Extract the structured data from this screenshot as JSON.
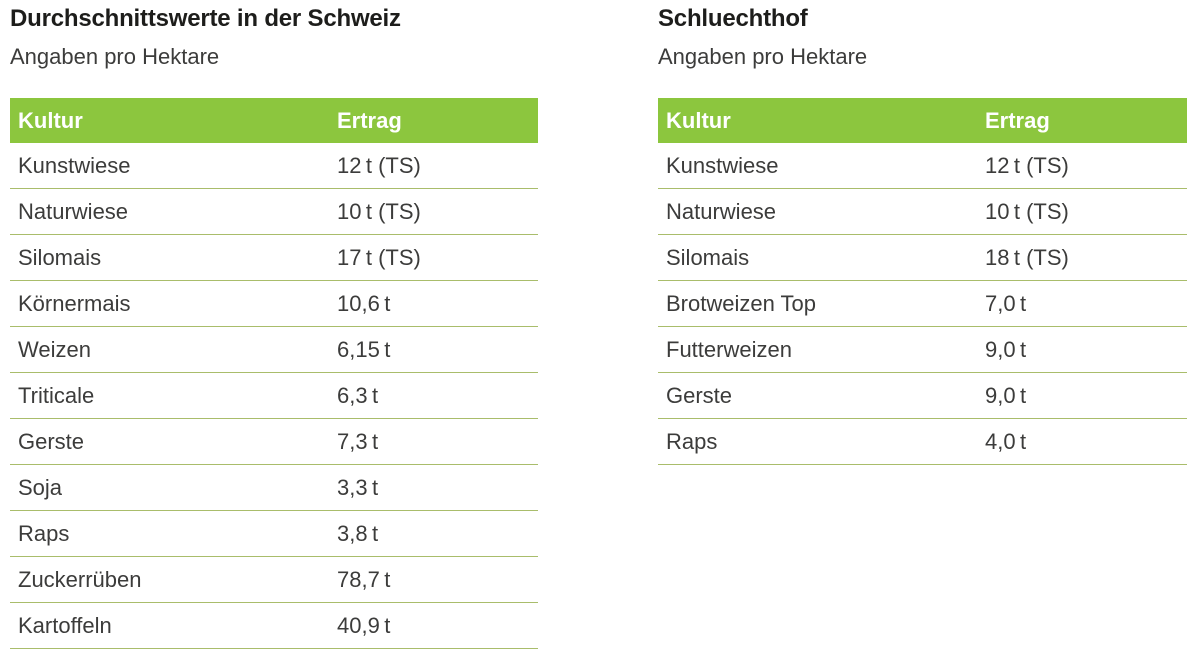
{
  "colors": {
    "header_green": "#8cc63e",
    "row_separator": "#a9bd6b",
    "header_text": "#ffffff",
    "title_text": "#1d1d1b",
    "body_text": "#3c3c3b",
    "background": "#ffffff"
  },
  "tables": [
    {
      "title": "Durchschnittswerte in der Schweiz",
      "subtitle": "Angaben pro Hektare",
      "columns": [
        "Kultur",
        "Ertrag"
      ],
      "rows": [
        {
          "kultur": "Kunstwiese",
          "ertrag": "12 t (TS)"
        },
        {
          "kultur": "Naturwiese",
          "ertrag": "10 t (TS)"
        },
        {
          "kultur": "Silomais",
          "ertrag": "17 t (TS)"
        },
        {
          "kultur": "Körnermais",
          "ertrag": "10,6 t"
        },
        {
          "kultur": "Weizen",
          "ertrag": "6,15 t"
        },
        {
          "kultur": "Triticale",
          "ertrag": "6,3 t"
        },
        {
          "kultur": "Gerste",
          "ertrag": "7,3 t"
        },
        {
          "kultur": "Soja",
          "ertrag": "3,3 t"
        },
        {
          "kultur": "Raps",
          "ertrag": "3,8 t"
        },
        {
          "kultur": "Zuckerrüben",
          "ertrag": "78,7 t"
        },
        {
          "kultur": "Kartoffeln",
          "ertrag": "40,9 t"
        }
      ]
    },
    {
      "title": "Schluechthof",
      "subtitle": "Angaben pro Hektare",
      "columns": [
        "Kultur",
        "Ertrag"
      ],
      "rows": [
        {
          "kultur": "Kunstwiese",
          "ertrag": "12 t (TS)"
        },
        {
          "kultur": "Naturwiese",
          "ertrag": "10 t (TS)"
        },
        {
          "kultur": "Silomais",
          "ertrag": "18 t (TS)"
        },
        {
          "kultur": "Brotweizen Top",
          "ertrag": "7,0 t"
        },
        {
          "kultur": "Futterweizen",
          "ertrag": "9,0 t"
        },
        {
          "kultur": "Gerste",
          "ertrag": "9,0 t"
        },
        {
          "kultur": "Raps",
          "ertrag": "4,0 t"
        }
      ]
    }
  ],
  "chart_data": [
    {
      "type": "table",
      "title": "Durchschnittswerte in der Schweiz",
      "subtitle": "Angaben pro Hektare",
      "columns": [
        "Kultur",
        "Ertrag"
      ],
      "rows": [
        [
          "Kunstwiese",
          "12 t (TS)"
        ],
        [
          "Naturwiese",
          "10 t (TS)"
        ],
        [
          "Silomais",
          "17 t (TS)"
        ],
        [
          "Körnermais",
          "10,6 t"
        ],
        [
          "Weizen",
          "6,15 t"
        ],
        [
          "Triticale",
          "6,3 t"
        ],
        [
          "Gerste",
          "7,3 t"
        ],
        [
          "Soja",
          "3,3 t"
        ],
        [
          "Raps",
          "3,8 t"
        ],
        [
          "Zuckerrüben",
          "78,7 t"
        ],
        [
          "Kartoffeln",
          "40,9 t"
        ]
      ],
      "values_tonnes_per_hectare": [
        12,
        10,
        17,
        10.6,
        6.15,
        6.3,
        7.3,
        3.3,
        3.8,
        78.7,
        40.9
      ]
    },
    {
      "type": "table",
      "title": "Schluechthof",
      "subtitle": "Angaben pro Hektare",
      "columns": [
        "Kultur",
        "Ertrag"
      ],
      "rows": [
        [
          "Kunstwiese",
          "12 t (TS)"
        ],
        [
          "Naturwiese",
          "10 t (TS)"
        ],
        [
          "Silomais",
          "18 t (TS)"
        ],
        [
          "Brotweizen Top",
          "7,0 t"
        ],
        [
          "Futterweizen",
          "9,0 t"
        ],
        [
          "Gerste",
          "9,0 t"
        ],
        [
          "Raps",
          "4,0 t"
        ]
      ],
      "values_tonnes_per_hectare": [
        12,
        10,
        18,
        7.0,
        9.0,
        9.0,
        4.0
      ]
    }
  ]
}
